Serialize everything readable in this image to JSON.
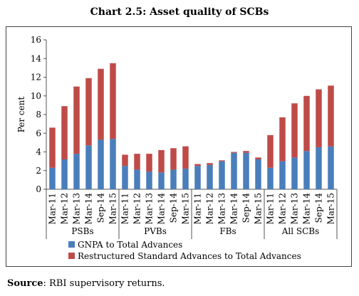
{
  "chart_title": "Chart 2.5: Asset quality of SCBs",
  "source": {
    "label": "Source",
    "text": ": RBI supervisory returns."
  },
  "colors": {
    "gnpa": "#4a7ebb",
    "restructured": "#be4b48"
  },
  "chart_data": {
    "type": "bar",
    "stacked": true,
    "title": "Chart 2.5: Asset quality of SCBs",
    "ylabel": "Per cent",
    "xlabel": "",
    "ylim": [
      0,
      16
    ],
    "yticks": [
      0,
      2,
      4,
      6,
      8,
      10,
      12,
      14,
      16
    ],
    "grid": false,
    "legend": "bottom",
    "groups": [
      {
        "name": "PSBs",
        "categories": [
          "Mar-11",
          "Mar-12",
          "Mar-13",
          "Mar-14",
          "Sep-14",
          "Mar-15"
        ],
        "gnpa": [
          2.3,
          3.2,
          3.8,
          4.7,
          5.3,
          5.4
        ],
        "restructured": [
          4.3,
          5.7,
          7.2,
          7.2,
          7.6,
          8.1
        ]
      },
      {
        "name": "PVBs",
        "categories": [
          "Mar-11",
          "Mar-12",
          "Mar-13",
          "Mar-14",
          "Sep-14",
          "Mar-15"
        ],
        "gnpa": [
          2.5,
          2.1,
          1.9,
          1.8,
          2.1,
          2.2
        ],
        "restructured": [
          1.2,
          1.7,
          1.9,
          2.4,
          2.3,
          2.4
        ]
      },
      {
        "name": "FBs",
        "categories": [
          "Mar-11",
          "Mar-12",
          "Mar-13",
          "Mar-14",
          "Sep-14",
          "Mar-15"
        ],
        "gnpa": [
          2.5,
          2.6,
          3.0,
          3.9,
          3.9,
          3.2
        ],
        "restructured": [
          0.2,
          0.2,
          0.1,
          0.1,
          0.2,
          0.2
        ]
      },
      {
        "name": "All SCBs",
        "categories": [
          "Mar-11",
          "Mar-12",
          "Mar-13",
          "Mar-14",
          "Sep-14",
          "Mar-15"
        ],
        "gnpa": [
          2.3,
          3.0,
          3.4,
          4.1,
          4.5,
          4.6
        ],
        "restructured": [
          3.5,
          4.7,
          5.8,
          5.9,
          6.2,
          6.5
        ]
      }
    ],
    "series": [
      {
        "name": "GNPA to Total Advances",
        "key": "gnpa"
      },
      {
        "name": "Restructured Standard Advances to Total Advances",
        "key": "restructured"
      }
    ]
  }
}
